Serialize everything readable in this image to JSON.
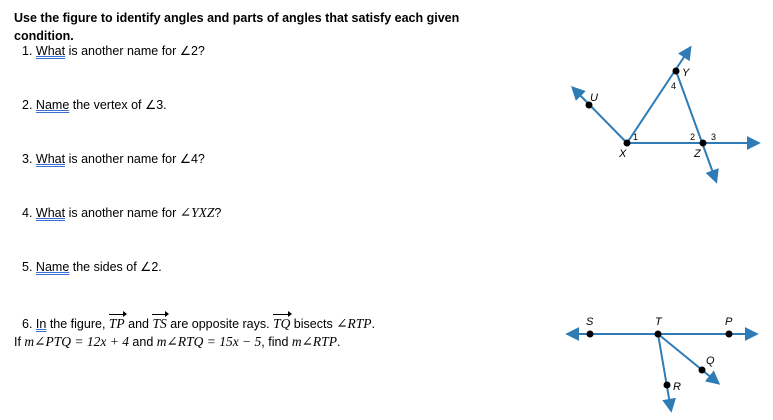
{
  "instructions": "Use the figure to identify angles and parts of angles that satisfy each given condition.",
  "questions": {
    "q1": {
      "num": "1.",
      "lead": "What",
      "rest": " is another name for ∠2?"
    },
    "q2": {
      "num": "2.",
      "lead": "Name",
      "rest": " the vertex of ∠3."
    },
    "q3": {
      "num": "3.",
      "lead": "What",
      "rest": " is another name for ∠4?"
    },
    "q4": {
      "num": "4.",
      "lead": "What",
      "rest": " is another name for ",
      "math": "∠YXZ",
      "end": "?"
    },
    "q5": {
      "num": "5.",
      "lead": "Name",
      "rest": " the sides of ∠2."
    },
    "q6": {
      "num": "6.",
      "lead": "In",
      "rest": " the figure, ",
      "ray1": "TP",
      "and": " and ",
      "ray2": "TS",
      "opp": " are opposite rays. ",
      "ray3": "TQ",
      "bisects": " bisects ",
      "angle": "∠RTP",
      "period": ".",
      "line2_if": "If ",
      "eq1": "m∠PTQ = 12x + 4",
      "and2": " and ",
      "eq2": "m∠RTQ = 15x − 5",
      "find": ", find ",
      "target": "m∠RTP",
      "end": "."
    }
  },
  "figure1": {
    "points": {
      "U": "U",
      "Y": "Y",
      "X": "X",
      "Z": "Z"
    },
    "angles": {
      "a1": "1",
      "a2": "2",
      "a3": "3",
      "a4": "4"
    }
  },
  "figure2": {
    "points": {
      "S": "S",
      "T": "T",
      "P": "P",
      "Q": "Q",
      "R": "R"
    }
  },
  "colors": {
    "ray": "#2e7bb5",
    "point": "#000000"
  }
}
